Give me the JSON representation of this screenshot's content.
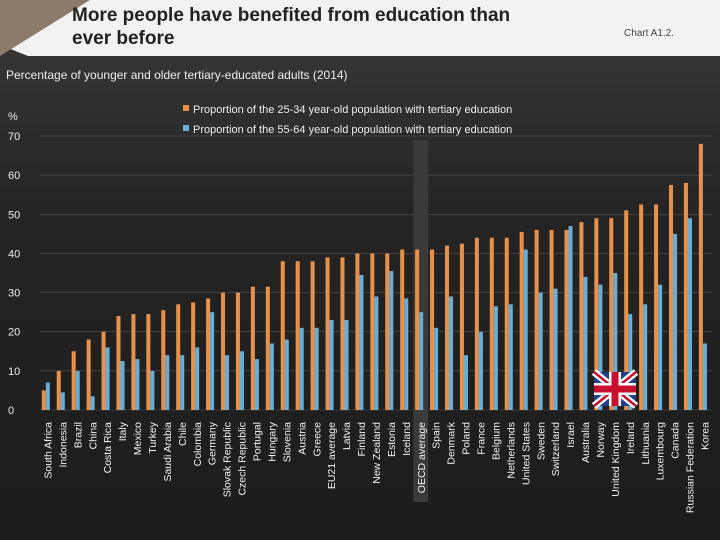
{
  "header": {
    "title": "More people have benefited from education than ever before",
    "chart_ref": "Chart A1.2."
  },
  "subtitle": "Percentage of younger and older tertiary-educated adults (2014)",
  "colors": {
    "young": "#e8914a",
    "old": "#6aaed6",
    "highlight": "#3a3a3a"
  },
  "chart_data": {
    "type": "bar",
    "ylabel": "%",
    "ylim": [
      0,
      70
    ],
    "yticks": [
      0,
      10,
      20,
      30,
      40,
      50,
      60,
      70
    ],
    "highlight_category": "OECD average",
    "categories": [
      "South Africa",
      "Indonesia",
      "Brazil",
      "China",
      "Costa Rica",
      "Italy",
      "Mexico",
      "Turkey",
      "Saudi Arabia",
      "Chile",
      "Colombia",
      "Germany",
      "Slovak Republic",
      "Czech Republic",
      "Portugal",
      "Hungary",
      "Slovenia",
      "Austria",
      "Greece",
      "EU21 average",
      "Latvia",
      "Finland",
      "New Zealand",
      "Estonia",
      "Iceland",
      "OECD average",
      "Spain",
      "Denmark",
      "Poland",
      "France",
      "Belgium",
      "Netherlands",
      "United States",
      "Sweden",
      "Switzerland",
      "Israel",
      "Australia",
      "Norway",
      "United Kingdom",
      "Ireland",
      "Lithuania",
      "Luxembourg",
      "Canada",
      "Russian Federation",
      "Korea"
    ],
    "series": [
      {
        "name": "Proportion of the 25-34 year-old population with tertiary education",
        "values": [
          5,
          10,
          15,
          18,
          20,
          24,
          24.5,
          24.5,
          25.5,
          27,
          27.5,
          28.5,
          30,
          30,
          31.5,
          31.5,
          38,
          38,
          38,
          39,
          39,
          40,
          40,
          40,
          41,
          41,
          41,
          42,
          42.5,
          44,
          44,
          44,
          45.5,
          46,
          46,
          46,
          48,
          49,
          49,
          51,
          52.5,
          52.5,
          57.5,
          58,
          68
        ]
      },
      {
        "name": "Proportion of the 55-64 year-old population with tertiary education",
        "values": [
          7,
          4.5,
          10,
          3.5,
          16,
          12.5,
          13,
          10,
          14,
          14,
          16,
          25,
          14,
          15,
          13,
          17,
          18,
          21,
          21,
          23,
          23,
          34.5,
          29,
          35.5,
          28.5,
          25,
          21,
          29,
          14,
          20,
          26.5,
          27,
          41,
          30,
          31,
          47,
          34,
          32,
          35,
          24.5,
          27,
          32,
          45,
          49,
          17
        ]
      }
    ],
    "badge_label": "UK"
  }
}
